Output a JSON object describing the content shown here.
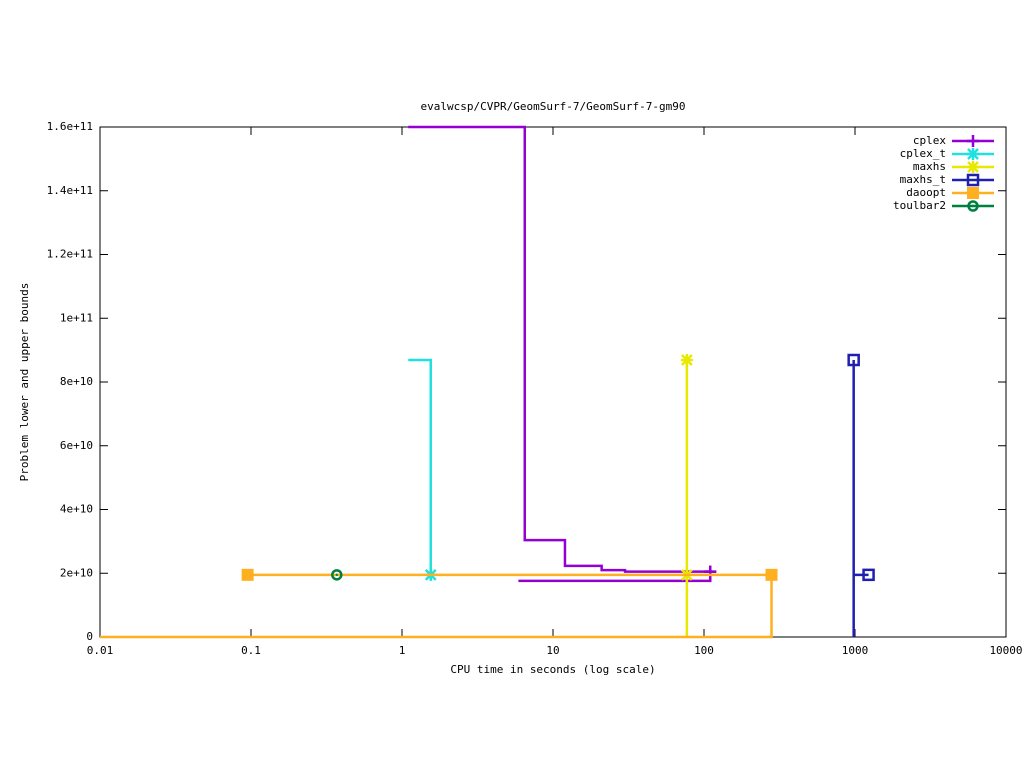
{
  "chart_data": {
    "type": "line",
    "title": "evalwcsp/CVPR/GeomSurf-7/GeomSurf-7-gm90",
    "x_label": "CPU time in seconds (log scale)",
    "y_label": "Problem lower and upper bounds",
    "x_log": true,
    "xlim": [
      0.01,
      10000
    ],
    "xticks": [
      0.01,
      0.1,
      1,
      10,
      100,
      1000,
      10000
    ],
    "ylim": [
      0,
      160000000000
    ],
    "yticks": [
      0,
      {
        "value": 20000000000,
        "label": "2e+10"
      },
      {
        "value": 40000000000,
        "label": "4e+10"
      },
      {
        "value": 60000000000,
        "label": "6e+10"
      },
      {
        "value": 80000000000,
        "label": "8e+10"
      },
      {
        "value": 100000000000,
        "label": "1e+11"
      },
      {
        "value": 120000000000,
        "label": "1.2e+11"
      },
      {
        "value": 140000000000,
        "label": "1.4e+11"
      },
      {
        "value": 160000000000,
        "label": "1.6e+11"
      }
    ],
    "legend": "top-right",
    "series": [
      {
        "name": "cplex",
        "color": "#9400d3",
        "marker": "plus",
        "x": [
          1.1,
          6.5,
          6.5,
          12,
          12,
          21,
          21,
          30,
          30,
          110,
          null,
          5.9,
          110,
          110
        ],
        "values": [
          160000000000,
          160000000000,
          30400000000,
          30400000000,
          22300000000,
          22300000000,
          21000000000,
          21000000000,
          20500000000,
          20500000000,
          null,
          17600000000,
          17600000000,
          20500000000
        ]
      },
      {
        "name": "cplex_t",
        "color": "#20e0e0",
        "marker": "star",
        "x": [
          1.1,
          1.55,
          1.55
        ],
        "values": [
          86900000000,
          86900000000,
          19500000000
        ]
      },
      {
        "name": "maxhs",
        "color": "#e8e800",
        "marker": "star",
        "x": [
          77,
          77,
          null,
          77
        ],
        "values": [
          0,
          86900000000,
          null,
          19500000000
        ]
      },
      {
        "name": "maxhs_t",
        "color": "#2020b0",
        "marker": "box",
        "x": [
          980,
          980,
          null,
          980,
          1230
        ],
        "values": [
          0,
          86900000000,
          null,
          19500000000,
          19500000000
        ]
      },
      {
        "name": "daoopt",
        "color": "#ffb020",
        "marker": "square",
        "x": [
          280,
          0.095,
          null,
          0.01,
          280,
          280
        ],
        "values": [
          19500000000,
          19500000000,
          null,
          0,
          0,
          19500000000
        ]
      },
      {
        "name": "toulbar2",
        "color": "#008040",
        "marker": "circle",
        "x": [
          0.37
        ],
        "values": [
          19500000000
        ]
      }
    ]
  }
}
